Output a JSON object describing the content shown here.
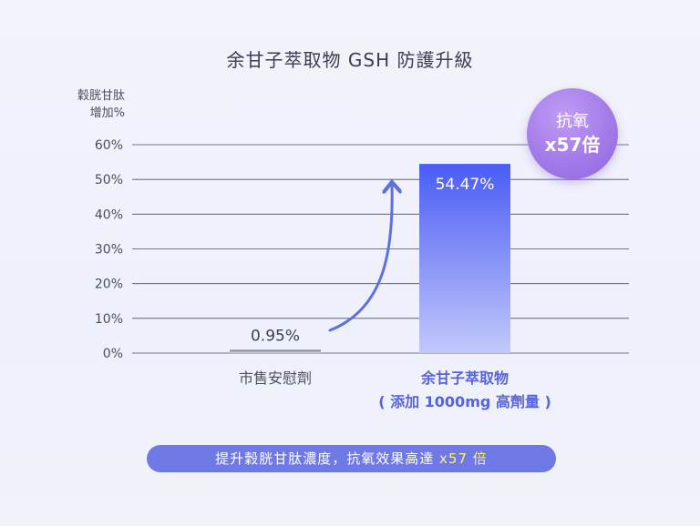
{
  "chart_data": {
    "type": "bar",
    "title": "余甘子萃取物 GSH 防護升級",
    "ylabel_lines": [
      "穀胱甘肽",
      "增加%"
    ],
    "ylim": [
      0,
      60
    ],
    "yticks": [
      0,
      10,
      20,
      30,
      40,
      50,
      60
    ],
    "ytick_labels": [
      "0%",
      "10%",
      "20%",
      "30%",
      "40%",
      "50%",
      "60%"
    ],
    "grid": true,
    "categories": [
      {
        "lines": [
          "市售安慰劑"
        ]
      },
      {
        "lines": [
          "余甘子萃取物",
          "( 添加 1000mg 高劑量 )"
        ]
      }
    ],
    "values": [
      0.95,
      54.47
    ],
    "value_labels": [
      "0.95%",
      "54.47%"
    ],
    "colors": {
      "placebo_bar_top": "#7a7a80",
      "placebo_bar_bottom": "#d6d6da",
      "main_bar_top": "#4a5cf5",
      "main_bar_bottom": "#c3c8fb",
      "arrow": "#5e6fe0",
      "grid": "#4a4d66",
      "highlight_label": "#5663e0"
    }
  },
  "badge": {
    "line1": "抗氧",
    "line2": "x57倍"
  },
  "footer": {
    "text": "提升穀胱甘肽濃度，抗氧效果高達",
    "highlight": "x57 倍"
  }
}
